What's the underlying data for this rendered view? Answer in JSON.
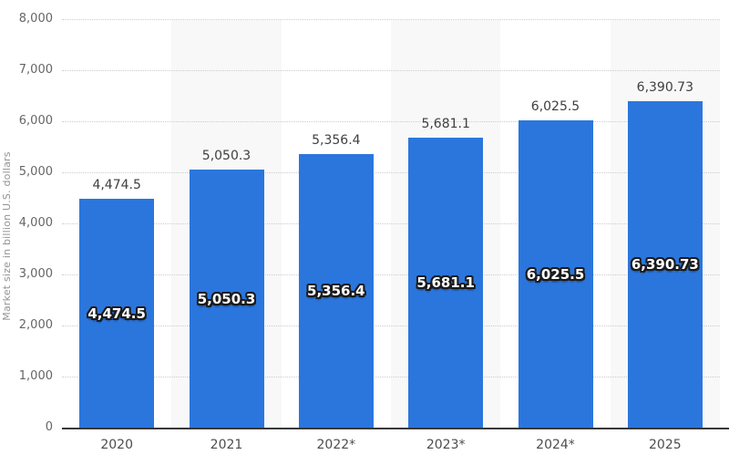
{
  "chart_data": {
    "type": "bar",
    "title": "",
    "xlabel": "",
    "ylabel": "Market size in billion U.S. dollars",
    "categories": [
      "2020",
      "2021",
      "2022*",
      "2023*",
      "2024*",
      "2025"
    ],
    "values": [
      4474.5,
      5050.3,
      5356.4,
      5681.1,
      6025.5,
      6390.73
    ],
    "value_labels": [
      "4,474.5",
      "5,050.3",
      "5,356.4",
      "5,681.1",
      "6,025.5",
      "6,390.73"
    ],
    "ylim": [
      0,
      8000
    ],
    "ytick_interval": 1000,
    "ytick_labels": [
      "0",
      "1,000",
      "2,000",
      "3,000",
      "4,000",
      "5,000",
      "6,000",
      "7,000",
      "8,000"
    ],
    "grid": "horizontal-dotted",
    "legend": "none",
    "colors": {
      "bar": "#2b76dd",
      "stripe": "#f8f8f8",
      "gridline": "#cccccc",
      "axis_line": "#383838",
      "label_above": "#3f3f3f",
      "label_inside": "#ffffff",
      "ytick_text": "#666666",
      "xtick_text": "#4d4d4d",
      "yaxis_title_text": "#949494"
    }
  }
}
